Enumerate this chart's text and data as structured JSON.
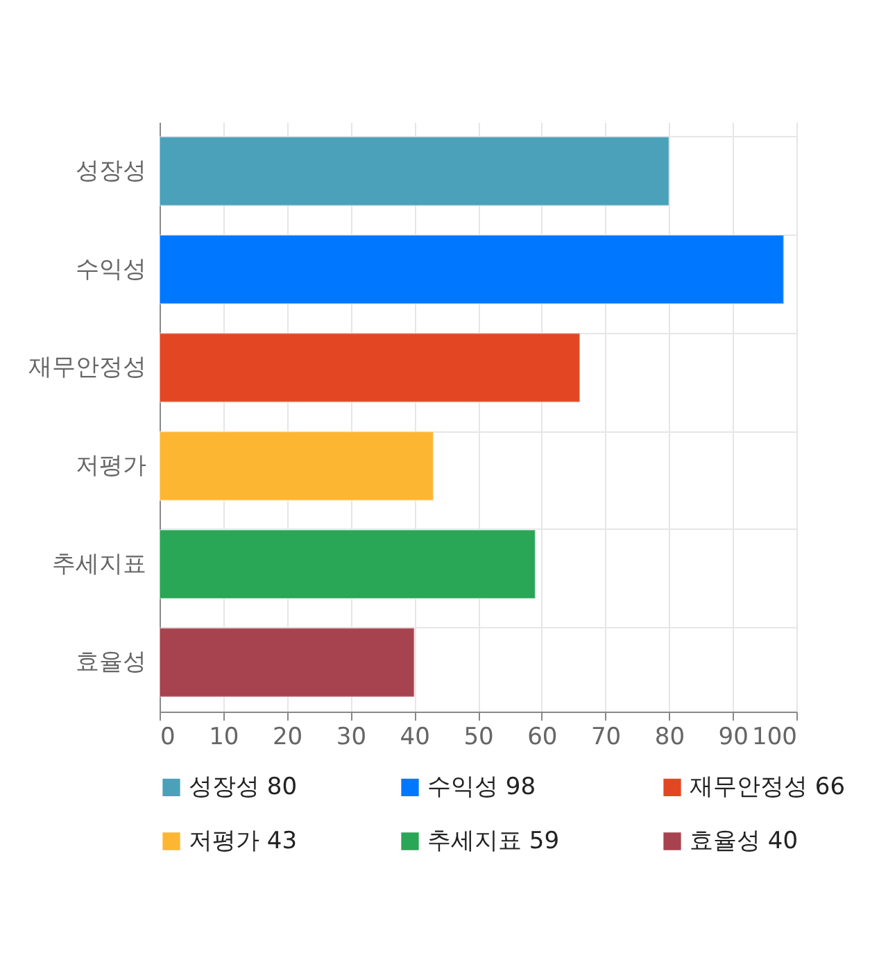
{
  "chart_data": {
    "type": "bar",
    "orientation": "horizontal",
    "stacked": true,
    "categories": [
      "성장성",
      "수익성",
      "재무안정성",
      "저평가",
      "추세지표",
      "효율성"
    ],
    "series": [
      {
        "name": "성장성 80",
        "color": "#4aa1b9",
        "values": [
          80,
          null,
          null,
          null,
          null,
          null
        ]
      },
      {
        "name": "수익성 98",
        "color": "#0077ff",
        "values": [
          null,
          98,
          null,
          null,
          null,
          null
        ]
      },
      {
        "name": "재무안정성 66",
        "color": "#e34623",
        "values": [
          null,
          null,
          66,
          null,
          null,
          null
        ]
      },
      {
        "name": "저평가 43",
        "color": "#fdb632",
        "values": [
          null,
          null,
          null,
          43,
          null,
          null
        ]
      },
      {
        "name": "추세지표 59",
        "color": "#29a656",
        "values": [
          null,
          null,
          null,
          null,
          59,
          null
        ]
      },
      {
        "name": "효율성 40",
        "color": "#a6434f",
        "values": [
          null,
          null,
          null,
          null,
          null,
          40
        ]
      }
    ],
    "xlim": [
      0,
      100
    ],
    "xticks": [
      0,
      10,
      20,
      30,
      40,
      50,
      60,
      70,
      80,
      90,
      100
    ],
    "grid": true,
    "legend": "bottom"
  }
}
